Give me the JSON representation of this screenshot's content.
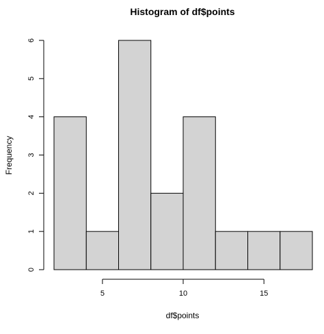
{
  "chart_data": {
    "type": "bar",
    "title": "Histogram of df$points",
    "xlabel": "df$points",
    "ylabel": "Frequency",
    "bins": [
      {
        "start": 2,
        "end": 4,
        "count": 4
      },
      {
        "start": 4,
        "end": 6,
        "count": 1
      },
      {
        "start": 6,
        "end": 8,
        "count": 6
      },
      {
        "start": 8,
        "end": 10,
        "count": 2
      },
      {
        "start": 10,
        "end": 12,
        "count": 4
      },
      {
        "start": 12,
        "end": 14,
        "count": 1
      },
      {
        "start": 14,
        "end": 16,
        "count": 1
      },
      {
        "start": 16,
        "end": 18,
        "count": 1
      }
    ],
    "x_ticks": [
      "5",
      "10",
      "15"
    ],
    "y_ticks": [
      "0",
      "1",
      "2",
      "3",
      "4",
      "5",
      "6"
    ],
    "xlim": [
      2,
      18
    ],
    "ylim": [
      0,
      6
    ],
    "bar_fill": "#d3d3d3",
    "bar_stroke": "#000000",
    "grid": false,
    "legend": "none"
  }
}
